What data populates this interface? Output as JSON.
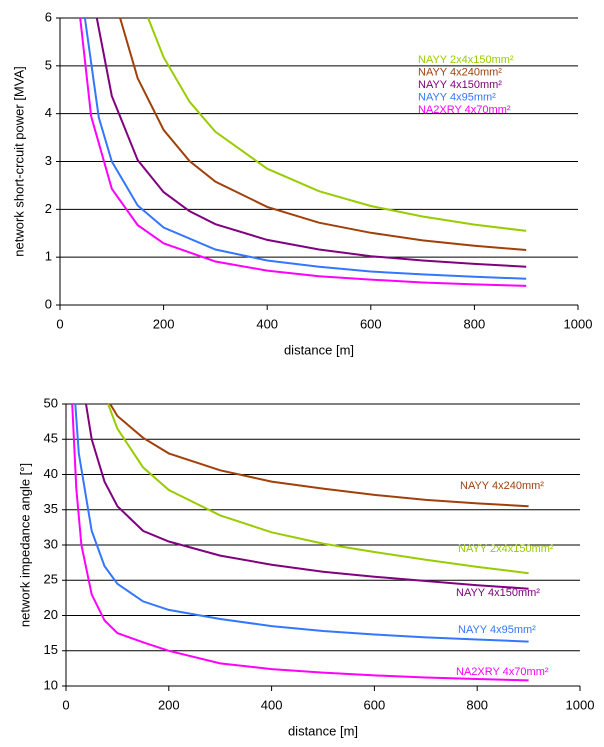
{
  "chart_data": [
    {
      "type": "line",
      "xlabel": "distance [m]",
      "ylabel": "network short-crcuit power [MVA]",
      "xlim": [
        0,
        1000
      ],
      "xticks": [
        0,
        200,
        400,
        600,
        800,
        1000
      ],
      "ylim": [
        0,
        6
      ],
      "yticks": [
        0,
        1,
        2,
        3,
        4,
        5,
        6
      ],
      "grid": true,
      "series": [
        {
          "name": "NAYY 2x4x150mm²",
          "color": "#99cc00",
          "x": [
            170,
            200,
            250,
            300,
            400,
            500,
            600,
            700,
            800,
            900
          ],
          "values": [
            6.0,
            5.18,
            4.25,
            3.62,
            2.85,
            2.38,
            2.07,
            1.85,
            1.68,
            1.55
          ]
        },
        {
          "name": "NAYY 4x240mm²",
          "color": "#a0400a",
          "x": [
            116,
            150,
            200,
            250,
            300,
            400,
            500,
            600,
            700,
            800,
            900
          ],
          "values": [
            6.0,
            4.74,
            3.66,
            3.01,
            2.58,
            2.05,
            1.72,
            1.51,
            1.35,
            1.24,
            1.15
          ]
        },
        {
          "name": "NAYY 4x150mm²",
          "color": "#800080",
          "x": [
            71,
            100,
            150,
            200,
            250,
            300,
            400,
            500,
            600,
            700,
            800,
            900
          ],
          "values": [
            6.0,
            4.37,
            3.03,
            2.36,
            1.96,
            1.69,
            1.36,
            1.16,
            1.02,
            0.93,
            0.86,
            0.8
          ]
        },
        {
          "name": "NAYY 4x95mm²",
          "color": "#3377ff",
          "x": [
            48,
            75,
            100,
            150,
            200,
            300,
            400,
            500,
            600,
            700,
            800,
            900
          ],
          "values": [
            6.0,
            3.92,
            3.0,
            2.08,
            1.62,
            1.16,
            0.93,
            0.8,
            0.7,
            0.64,
            0.59,
            0.55
          ]
        },
        {
          "name": "NA2XRY 4x70mm²",
          "color": "#ff00ff",
          "x": [
            39,
            60,
            100,
            150,
            200,
            300,
            400,
            500,
            600,
            700,
            800,
            900
          ],
          "values": [
            6.0,
            3.95,
            2.43,
            1.67,
            1.29,
            0.91,
            0.72,
            0.6,
            0.53,
            0.47,
            0.43,
            0.4
          ]
        }
      ]
    },
    {
      "type": "line",
      "xlabel": "distance [m]",
      "ylabel": "network impedance angle [°]",
      "xlim": [
        0,
        1000
      ],
      "xticks": [
        0,
        200,
        400,
        600,
        800,
        1000
      ],
      "ylim": [
        10,
        50
      ],
      "yticks": [
        10,
        15,
        20,
        25,
        30,
        35,
        40,
        45,
        50
      ],
      "grid": true,
      "series": [
        {
          "name": "NAYY 4x240mm²",
          "color": "#a0400a",
          "x": [
            86,
            100,
            150,
            200,
            300,
            400,
            500,
            600,
            700,
            800,
            900
          ],
          "values": [
            50,
            48.3,
            45.2,
            43.0,
            40.6,
            39.0,
            38.0,
            37.1,
            36.4,
            35.9,
            35.5
          ]
        },
        {
          "name": "NAYY 2x4x150mm²",
          "color": "#99cc00",
          "x": [
            82,
            100,
            150,
            200,
            300,
            400,
            500,
            600,
            700,
            800,
            900
          ],
          "values": [
            50,
            46.5,
            41,
            37.8,
            34.2,
            31.8,
            30.2,
            29.0,
            27.9,
            26.9,
            26.0
          ]
        },
        {
          "name": "NAYY 4x150mm²",
          "color": "#800080",
          "x": [
            39,
            50,
            75,
            100,
            150,
            200,
            300,
            400,
            500,
            600,
            700,
            800,
            900
          ],
          "values": [
            50,
            45,
            39,
            35.5,
            32,
            30.5,
            28.5,
            27.2,
            26.2,
            25.5,
            24.9,
            24.3,
            23.8
          ]
        },
        {
          "name": "NAYY 4x95mm²",
          "color": "#3377ff",
          "x": [
            18,
            25,
            50,
            75,
            100,
            150,
            200,
            300,
            400,
            500,
            600,
            700,
            800,
            900
          ],
          "values": [
            50,
            43,
            32,
            27,
            24.5,
            22,
            20.8,
            19.5,
            18.5,
            17.8,
            17.3,
            16.9,
            16.6,
            16.3
          ]
        },
        {
          "name": "NA2XRY 4x70mm²",
          "color": "#ff00ff",
          "x": [
            12,
            20,
            30,
            50,
            75,
            100,
            150,
            200,
            300,
            400,
            500,
            600,
            700,
            800,
            900
          ],
          "values": [
            50,
            38,
            30,
            23,
            19.3,
            17.5,
            16.2,
            15.0,
            13.2,
            12.4,
            11.9,
            11.5,
            11.2,
            11.0,
            10.8
          ]
        }
      ]
    }
  ]
}
